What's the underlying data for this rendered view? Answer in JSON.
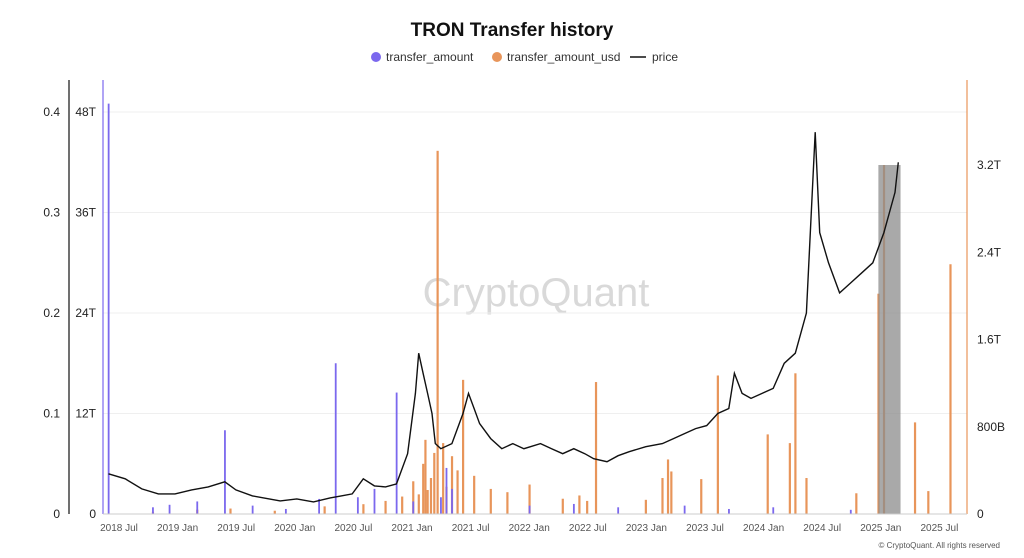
{
  "chart_data": {
    "type": "bar",
    "title": "TRON Transfer history",
    "watermark": "CryptoQuant",
    "copyright": "© CryptoQuant. All rights reserved",
    "legend": [
      {
        "label": "transfer_amount",
        "marker": "dot",
        "color": "#7b68ee"
      },
      {
        "label": "transfer_amount_usd",
        "marker": "dot",
        "color": "#e8955a"
      },
      {
        "label": "price",
        "marker": "line",
        "color": "#111111"
      }
    ],
    "x_ticks": [
      "2018 Jul",
      "2019 Jan",
      "2019 Jul",
      "2020 Jan",
      "2020 Jul",
      "2021 Jan",
      "2021 Jul",
      "2022 Jan",
      "2022 Jul",
      "2023 Jan",
      "2023 Jul",
      "2024 Jan",
      "2024 Jul",
      "2025 Jan",
      "2025 Jul"
    ],
    "axes": {
      "price_left": {
        "ticks": [
          "0",
          "0.1",
          "0.2",
          "0.3",
          "0.4"
        ],
        "range": [
          0,
          0.4
        ]
      },
      "amount_left": {
        "ticks": [
          "0",
          "12T",
          "24T",
          "36T",
          "48T"
        ],
        "range": [
          0,
          48
        ]
      },
      "usd_right": {
        "ticks": [
          "0",
          "800B",
          "1.6T",
          "2.4T",
          "3.2T"
        ],
        "range": [
          0,
          3.2
        ]
      }
    },
    "series": [
      {
        "name": "transfer_amount",
        "color": "#7b68ee",
        "unit": "T",
        "points": [
          [
            2018.5,
            49
          ],
          [
            2018.9,
            0.8
          ],
          [
            2019.05,
            1.1
          ],
          [
            2019.3,
            1.5
          ],
          [
            2019.55,
            10
          ],
          [
            2019.8,
            1
          ],
          [
            2020.1,
            0.6
          ],
          [
            2020.4,
            1.8
          ],
          [
            2020.55,
            18
          ],
          [
            2020.75,
            2
          ],
          [
            2020.9,
            3
          ],
          [
            2021.1,
            14.5
          ],
          [
            2021.25,
            1.5
          ],
          [
            2021.5,
            2
          ],
          [
            2021.55,
            5.5
          ],
          [
            2021.6,
            3
          ],
          [
            2022.3,
            1
          ],
          [
            2022.7,
            1.2
          ],
          [
            2023.1,
            0.8
          ],
          [
            2023.7,
            1
          ],
          [
            2024.1,
            0.6
          ],
          [
            2024.5,
            0.8
          ],
          [
            2025.2,
            0.5
          ]
        ]
      },
      {
        "name": "transfer_amount_usd",
        "color": "#e8955a",
        "unit": "B",
        "points": [
          [
            2018.9,
            20
          ],
          [
            2019.3,
            40
          ],
          [
            2019.6,
            50
          ],
          [
            2020.0,
            30
          ],
          [
            2020.45,
            70
          ],
          [
            2020.8,
            90
          ],
          [
            2021.0,
            120
          ],
          [
            2021.15,
            160
          ],
          [
            2021.25,
            300
          ],
          [
            2021.3,
            180
          ],
          [
            2021.34,
            460
          ],
          [
            2021.36,
            680
          ],
          [
            2021.38,
            220
          ],
          [
            2021.41,
            330
          ],
          [
            2021.44,
            560
          ],
          [
            2021.47,
            3330
          ],
          [
            2021.52,
            650
          ],
          [
            2021.55,
            250
          ],
          [
            2021.6,
            530
          ],
          [
            2021.65,
            400
          ],
          [
            2021.7,
            1230
          ],
          [
            2021.8,
            350
          ],
          [
            2021.95,
            230
          ],
          [
            2022.1,
            200
          ],
          [
            2022.3,
            270
          ],
          [
            2022.6,
            140
          ],
          [
            2022.75,
            170
          ],
          [
            2022.82,
            120
          ],
          [
            2022.9,
            1210
          ],
          [
            2023.35,
            130
          ],
          [
            2023.5,
            330
          ],
          [
            2023.55,
            500
          ],
          [
            2023.58,
            390
          ],
          [
            2023.85,
            320
          ],
          [
            2024.0,
            1270
          ],
          [
            2024.45,
            730
          ],
          [
            2024.65,
            650
          ],
          [
            2024.7,
            1290
          ],
          [
            2024.8,
            330
          ],
          [
            2025.25,
            190
          ],
          [
            2025.45,
            2020
          ],
          [
            2025.5,
            3200
          ],
          [
            2025.78,
            840
          ],
          [
            2025.9,
            210
          ],
          [
            2026.1,
            2290
          ]
        ]
      },
      {
        "name": "price",
        "color": "#111111",
        "unit": "USD",
        "points": [
          [
            2018.5,
            0.04
          ],
          [
            2018.65,
            0.035
          ],
          [
            2018.8,
            0.025
          ],
          [
            2018.95,
            0.02
          ],
          [
            2019.1,
            0.02
          ],
          [
            2019.25,
            0.024
          ],
          [
            2019.4,
            0.027
          ],
          [
            2019.55,
            0.032
          ],
          [
            2019.65,
            0.024
          ],
          [
            2019.8,
            0.018
          ],
          [
            2019.95,
            0.015
          ],
          [
            2020.05,
            0.013
          ],
          [
            2020.2,
            0.015
          ],
          [
            2020.35,
            0.012
          ],
          [
            2020.5,
            0.016
          ],
          [
            2020.6,
            0.018
          ],
          [
            2020.7,
            0.02
          ],
          [
            2020.8,
            0.035
          ],
          [
            2020.9,
            0.028
          ],
          [
            2021.0,
            0.027
          ],
          [
            2021.1,
            0.03
          ],
          [
            2021.2,
            0.06
          ],
          [
            2021.27,
            0.12
          ],
          [
            2021.3,
            0.16
          ],
          [
            2021.34,
            0.14
          ],
          [
            2021.38,
            0.12
          ],
          [
            2021.42,
            0.1
          ],
          [
            2021.45,
            0.07
          ],
          [
            2021.5,
            0.065
          ],
          [
            2021.6,
            0.07
          ],
          [
            2021.7,
            0.1
          ],
          [
            2021.75,
            0.12
          ],
          [
            2021.8,
            0.105
          ],
          [
            2021.85,
            0.09
          ],
          [
            2021.95,
            0.075
          ],
          [
            2022.05,
            0.065
          ],
          [
            2022.15,
            0.07
          ],
          [
            2022.25,
            0.065
          ],
          [
            2022.4,
            0.07
          ],
          [
            2022.5,
            0.065
          ],
          [
            2022.6,
            0.06
          ],
          [
            2022.7,
            0.065
          ],
          [
            2022.8,
            0.06
          ],
          [
            2022.88,
            0.055
          ],
          [
            2023.0,
            0.052
          ],
          [
            2023.1,
            0.058
          ],
          [
            2023.2,
            0.062
          ],
          [
            2023.35,
            0.067
          ],
          [
            2023.5,
            0.07
          ],
          [
            2023.6,
            0.075
          ],
          [
            2023.7,
            0.08
          ],
          [
            2023.8,
            0.085
          ],
          [
            2023.9,
            0.088
          ],
          [
            2024.0,
            0.1
          ],
          [
            2024.1,
            0.105
          ],
          [
            2024.15,
            0.14
          ],
          [
            2024.22,
            0.12
          ],
          [
            2024.3,
            0.115
          ],
          [
            2024.4,
            0.12
          ],
          [
            2024.5,
            0.125
          ],
          [
            2024.6,
            0.15
          ],
          [
            2024.7,
            0.16
          ],
          [
            2024.8,
            0.2
          ],
          [
            2024.88,
            0.38
          ],
          [
            2024.92,
            0.28
          ],
          [
            2025.0,
            0.25
          ],
          [
            2025.1,
            0.22
          ],
          [
            2025.2,
            0.23
          ],
          [
            2025.3,
            0.24
          ],
          [
            2025.4,
            0.25
          ],
          [
            2025.5,
            0.28
          ],
          [
            2025.6,
            0.32
          ],
          [
            2025.63,
            0.35
          ]
        ]
      }
    ],
    "highlight": {
      "from": 2025.45,
      "to": 2025.65,
      "color": "#8c8c8c"
    }
  }
}
